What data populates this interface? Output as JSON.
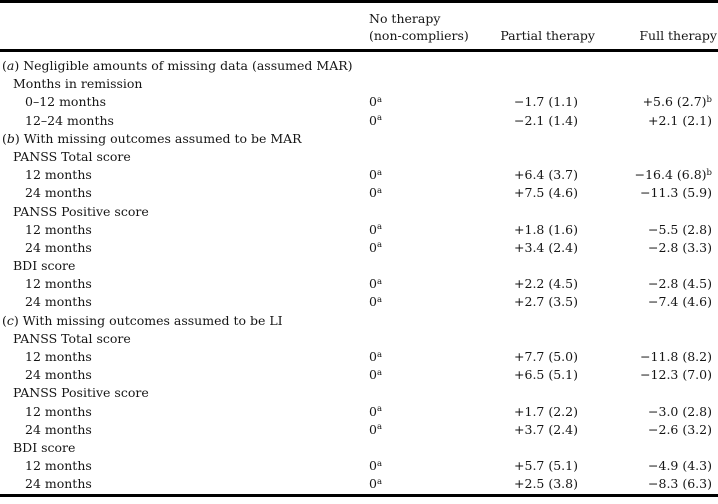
{
  "table": {
    "header": {
      "col1": "",
      "col2_line1": "No therapy",
      "col2_line2": "(non-compliers)",
      "col3": "Partial therapy",
      "col4": "Full therapy"
    },
    "rows": [
      {
        "type": "section",
        "prefix_letter": "a",
        "label": "Negligible amounts of missing data (assumed MAR)"
      },
      {
        "type": "subsection",
        "label": "Months in remission"
      },
      {
        "type": "data",
        "label": "0–12 months",
        "no_therapy": "0",
        "no_therapy_sup": "a",
        "partial": "−1.7 (1.1)",
        "full": "+5.6 (2.7)",
        "full_sup": "b"
      },
      {
        "type": "data",
        "label": "12–24 months",
        "no_therapy": "0",
        "no_therapy_sup": "a",
        "partial": "−2.1 (1.4)",
        "full": "+2.1 (2.1)",
        "full_sup": ""
      },
      {
        "type": "section",
        "prefix_letter": "b",
        "label": "With missing outcomes assumed to be MAR"
      },
      {
        "type": "subsection",
        "label": "PANSS Total score"
      },
      {
        "type": "data",
        "label": "12 months",
        "no_therapy": "0",
        "no_therapy_sup": "a",
        "partial": "+6.4 (3.7)",
        "full": "−16.4 (6.8)",
        "full_sup": "b"
      },
      {
        "type": "data",
        "label": "24 months",
        "no_therapy": "0",
        "no_therapy_sup": "a",
        "partial": "+7.5 (4.6)",
        "full": "−11.3 (5.9)",
        "full_sup": ""
      },
      {
        "type": "subsection",
        "label": "PANSS Positive score"
      },
      {
        "type": "data",
        "label": "12 months",
        "no_therapy": "0",
        "no_therapy_sup": "a",
        "partial": "+1.8 (1.6)",
        "full": "−5.5 (2.8)",
        "full_sup": ""
      },
      {
        "type": "data",
        "label": "24 months",
        "no_therapy": "0",
        "no_therapy_sup": "a",
        "partial": "+3.4 (2.4)",
        "full": "−2.8 (3.3)",
        "full_sup": ""
      },
      {
        "type": "subsection",
        "label": "BDI score"
      },
      {
        "type": "data",
        "label": "12 months",
        "no_therapy": "0",
        "no_therapy_sup": "a",
        "partial": "+2.2 (4.5)",
        "full": "−2.8 (4.5)",
        "full_sup": ""
      },
      {
        "type": "data",
        "label": "24 months",
        "no_therapy": "0",
        "no_therapy_sup": "a",
        "partial": "+2.7 (3.5)",
        "full": "−7.4 (4.6)",
        "full_sup": ""
      },
      {
        "type": "section",
        "prefix_letter": "c",
        "label": "With missing outcomes assumed to be LI"
      },
      {
        "type": "subsection",
        "label": "PANSS Total score"
      },
      {
        "type": "data",
        "label": "12 months",
        "no_therapy": "0",
        "no_therapy_sup": "a",
        "partial": "+7.7 (5.0)",
        "full": "−11.8 (8.2)",
        "full_sup": ""
      },
      {
        "type": "data",
        "label": "24 months",
        "no_therapy": "0",
        "no_therapy_sup": "a",
        "partial": "+6.5 (5.1)",
        "full": "−12.3 (7.0)",
        "full_sup": ""
      },
      {
        "type": "subsection",
        "label": "PANSS Positive score"
      },
      {
        "type": "data",
        "label": "12 months",
        "no_therapy": "0",
        "no_therapy_sup": "a",
        "partial": "+1.7 (2.2)",
        "full": "−3.0 (2.8)",
        "full_sup": ""
      },
      {
        "type": "data",
        "label": "24 months",
        "no_therapy": "0",
        "no_therapy_sup": "a",
        "partial": "+3.7 (2.4)",
        "full": "−2.6 (3.2)",
        "full_sup": ""
      },
      {
        "type": "subsection",
        "label": "BDI score"
      },
      {
        "type": "data",
        "label": "12 months",
        "no_therapy": "0",
        "no_therapy_sup": "a",
        "partial": "+5.7 (5.1)",
        "full": "−4.9 (4.3)",
        "full_sup": ""
      },
      {
        "type": "data",
        "label": "24 months",
        "no_therapy": "0",
        "no_therapy_sup": "a",
        "partial": "+2.5 (3.8)",
        "full": "−8.3 (6.3)",
        "full_sup": ""
      }
    ]
  },
  "colors": {
    "background": "#ffffff",
    "text": "#151515",
    "rule": "#000000"
  }
}
